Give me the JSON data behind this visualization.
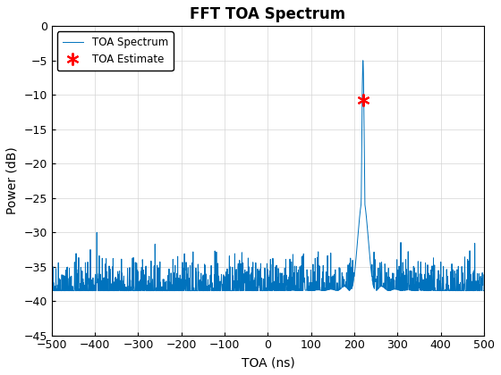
{
  "title": "FFT TOA Spectrum",
  "xlabel": "TOA (ns)",
  "ylabel": "Power (dB)",
  "xlim": [
    -500,
    500
  ],
  "ylim": [
    -45,
    0
  ],
  "yticks": [
    0,
    -5,
    -10,
    -15,
    -20,
    -25,
    -30,
    -35,
    -40,
    -45
  ],
  "xticks": [
    -500,
    -400,
    -300,
    -200,
    -100,
    0,
    100,
    200,
    300,
    400,
    500
  ],
  "line_color": "#0072BD",
  "marker_color": "#FF0000",
  "toa_estimate_x": 220,
  "toa_estimate_y": -10.8,
  "noise_floor": -38.5,
  "noise_std": 2.2,
  "peak_x": 220,
  "peak_y": -5.0,
  "seed": 42,
  "legend_labels": [
    "TOA Spectrum",
    "TOA Estimate"
  ],
  "background_color": "#ffffff",
  "grid_color": "#d3d3d3"
}
